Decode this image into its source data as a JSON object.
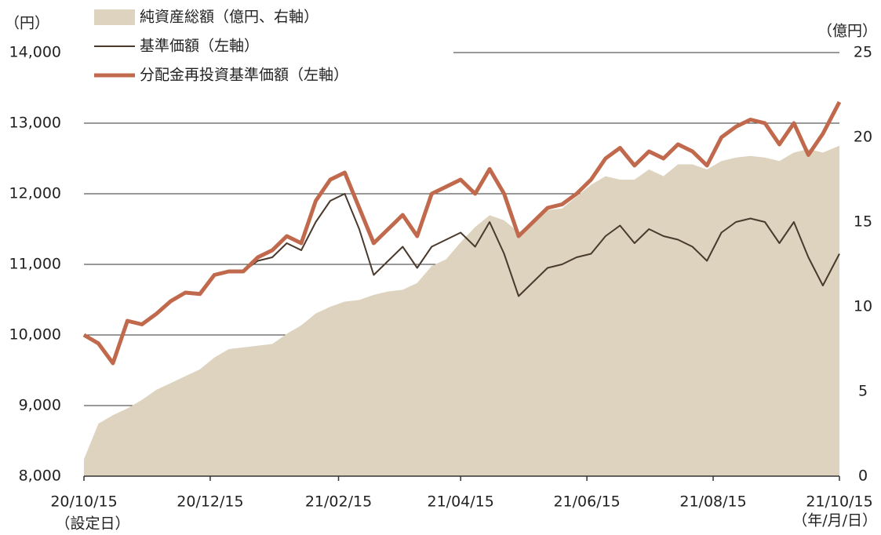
{
  "chart_data": {
    "type": "line",
    "y_unit_label": "（円）",
    "y2_unit_label": "（億円）",
    "x_start_note": "（設定日）",
    "x_end_note": "（年/月/日）",
    "xlim": [
      "20/10/15",
      "21/10/15"
    ],
    "xticks": [
      "20/10/15",
      "20/12/15",
      "21/02/15",
      "21/04/15",
      "21/06/15",
      "21/08/15",
      "21/10/15"
    ],
    "ylim": [
      8000,
      14000
    ],
    "yticks": [
      {
        "value": 8000,
        "label": "8,000"
      },
      {
        "value": 9000,
        "label": "9,000"
      },
      {
        "value": 10000,
        "label": "10,000"
      },
      {
        "value": 11000,
        "label": "11,000"
      },
      {
        "value": 12000,
        "label": "12,000"
      },
      {
        "value": 13000,
        "label": "13,000"
      },
      {
        "value": 14000,
        "label": "14,000"
      }
    ],
    "y2lim": [
      0,
      25
    ],
    "y2ticks": [
      0,
      5,
      10,
      15,
      20,
      25
    ],
    "grid": true,
    "x": [
      "20/10/15",
      "20/10/22",
      "20/10/29",
      "20/11/05",
      "20/11/12",
      "20/11/19",
      "20/11/26",
      "20/12/03",
      "20/12/10",
      "20/12/17",
      "20/12/24",
      "20/12/31",
      "21/01/07",
      "21/01/14",
      "21/01/21",
      "21/01/28",
      "21/02/04",
      "21/02/11",
      "21/02/18",
      "21/02/25",
      "21/03/04",
      "21/03/11",
      "21/03/18",
      "21/03/25",
      "21/04/01",
      "21/04/08",
      "21/04/15",
      "21/04/22",
      "21/04/29",
      "21/05/06",
      "21/05/13",
      "21/05/20",
      "21/05/27",
      "21/06/03",
      "21/06/10",
      "21/06/17",
      "21/06/24",
      "21/07/01",
      "21/07/08",
      "21/07/15",
      "21/07/22",
      "21/07/29",
      "21/08/05",
      "21/08/12",
      "21/08/19",
      "21/08/26",
      "21/09/02",
      "21/09/09",
      "21/09/16",
      "21/09/23",
      "21/09/30",
      "21/10/07",
      "21/10/15"
    ],
    "series": [
      {
        "name": "純資産総額（億円、右軸）",
        "kind": "area",
        "axis": "y2",
        "color": "#ddd3bf",
        "values": [
          1.0,
          3.1,
          3.6,
          4.0,
          4.5,
          5.1,
          5.5,
          5.9,
          6.3,
          7.0,
          7.5,
          7.6,
          7.7,
          7.8,
          8.4,
          8.9,
          9.6,
          10.0,
          10.3,
          10.4,
          10.7,
          10.9,
          11.0,
          11.4,
          12.4,
          12.8,
          13.8,
          14.7,
          15.4,
          15.1,
          14.4,
          14.9,
          15.7,
          15.8,
          16.5,
          17.2,
          17.7,
          17.5,
          17.5,
          18.1,
          17.7,
          18.4,
          18.4,
          18.1,
          18.6,
          18.8,
          18.9,
          18.8,
          18.6,
          19.1,
          19.3,
          19.1,
          19.5
        ]
      },
      {
        "name": "基準価額（左軸）",
        "kind": "line",
        "color": "#4a3a2e",
        "width": 2,
        "values": [
          10000,
          9880,
          9600,
          10200,
          10150,
          10300,
          10480,
          10600,
          10580,
          10850,
          10900,
          10900,
          11050,
          11100,
          11300,
          11200,
          11600,
          11900,
          12000,
          11500,
          10850,
          11050,
          11250,
          10950,
          11250,
          11350,
          11450,
          11250,
          11600,
          11150,
          10550,
          10750,
          10950,
          11000,
          11100,
          11150,
          11400,
          11550,
          11300,
          11500,
          11400,
          11350,
          11250,
          11050,
          11450,
          11600,
          11650,
          11600,
          11300,
          11600,
          11100,
          10700,
          11150
        ]
      },
      {
        "name": "分配金再投資基準価額（左軸）",
        "kind": "line",
        "color": "#c0694c",
        "width": 5,
        "values": [
          10000,
          9880,
          9600,
          10200,
          10150,
          10300,
          10480,
          10600,
          10580,
          10850,
          10900,
          10900,
          11100,
          11200,
          11400,
          11300,
          11900,
          12200,
          12300,
          11800,
          11300,
          11500,
          11700,
          11400,
          12000,
          12100,
          12200,
          12000,
          12350,
          12000,
          11400,
          11600,
          11800,
          11850,
          12000,
          12200,
          12500,
          12650,
          12400,
          12600,
          12500,
          12700,
          12600,
          12400,
          12800,
          12950,
          13050,
          13000,
          12700,
          13000,
          12550,
          12850,
          13300
        ]
      }
    ]
  }
}
